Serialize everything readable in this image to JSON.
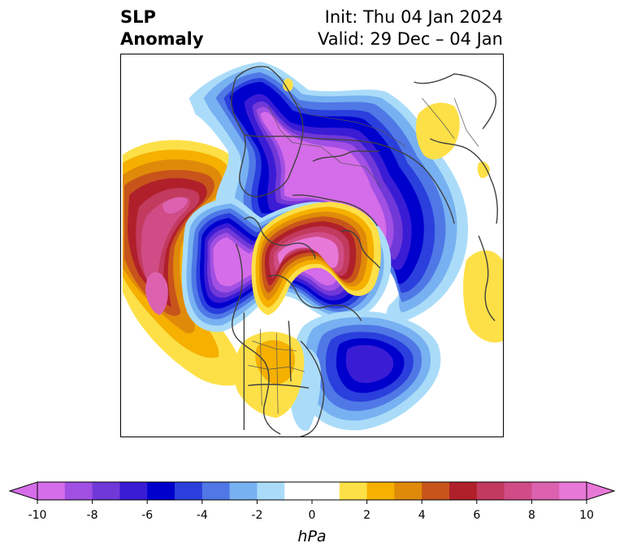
{
  "title": {
    "line1_left": "SLP",
    "line2_left": "Anomaly",
    "line1_right": "Init: Thu 04 Jan 2024",
    "line2_right": "Valid: 29 Dec – 04 Jan"
  },
  "colorbar": {
    "unit": "hPa",
    "min": -10,
    "max": 10,
    "extend": "both",
    "tick_values": [
      -10,
      -8,
      -6,
      -4,
      -2,
      0,
      2,
      4,
      6,
      8,
      10
    ],
    "tick_labels": [
      "-10",
      "-8",
      "-6",
      "-4",
      "-2",
      "0",
      "2",
      "4",
      "6",
      "8",
      "10"
    ],
    "colors": [
      "#d56ce9",
      "#a150e3",
      "#7138d8",
      "#3a1cd5",
      "#0000cc",
      "#2a3fdc",
      "#4f78e6",
      "#77b1f1",
      "#aadcf9",
      "#ffffff",
      "#ffffff",
      "#fde047",
      "#f5b000",
      "#e08a0a",
      "#c8541c",
      "#b0202a",
      "#c23a5e",
      "#d04c86",
      "#dc62b0",
      "#e878d8"
    ],
    "extend_low_color": "#d56ce9",
    "extend_high_color": "#e878d8"
  },
  "map": {
    "projection": "north-polar-stereographic",
    "field": "SLP anomaly (shaded)"
  }
}
